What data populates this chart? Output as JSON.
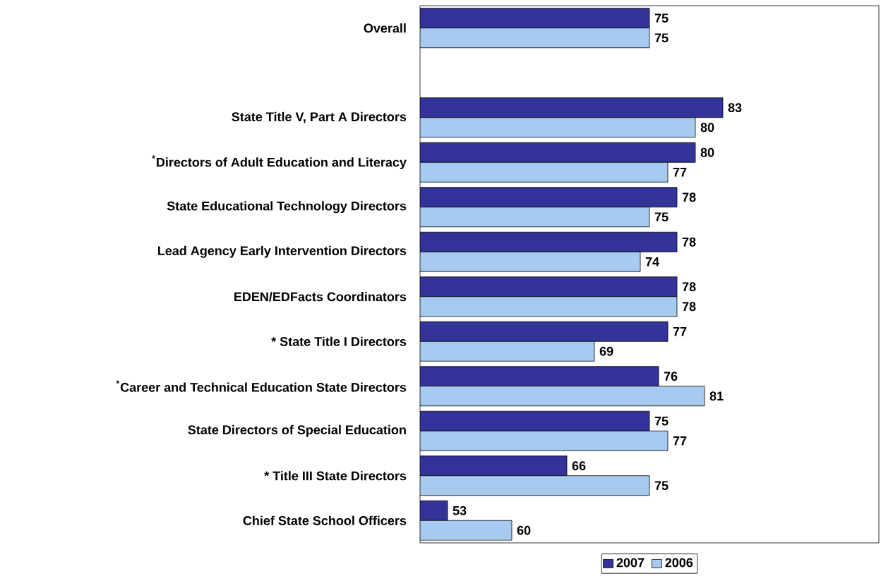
{
  "chart_data": {
    "type": "bar",
    "orientation": "horizontal",
    "categories": [
      "Overall",
      null,
      "State Title V, Part A Directors",
      "$^{*}$Directors of Adult Education and Literacy",
      "State Educational Technology Directors",
      "Lead Agency Early Intervention Directors",
      "EDEN/EDFacts Coordinators",
      "* State Title I Directors",
      "$^{*}$Career and Technical Education State Directors",
      "State Directors of Special Education",
      "* Title III State Directors",
      "Chief State School Officers"
    ],
    "series": [
      {
        "name": "2007",
        "color": "#333399",
        "values": [
          75,
          null,
          83,
          80,
          78,
          78,
          78,
          77,
          76,
          75,
          66,
          53
        ]
      },
      {
        "name": "2006",
        "color": "#a6caf0",
        "values": [
          75,
          null,
          80,
          77,
          75,
          74,
          78,
          69,
          81,
          77,
          75,
          60
        ]
      }
    ],
    "xlim": [
      50,
      100
    ],
    "tick_labels": "y",
    "data_labels": true,
    "legend": "bottom",
    "grid": false
  }
}
